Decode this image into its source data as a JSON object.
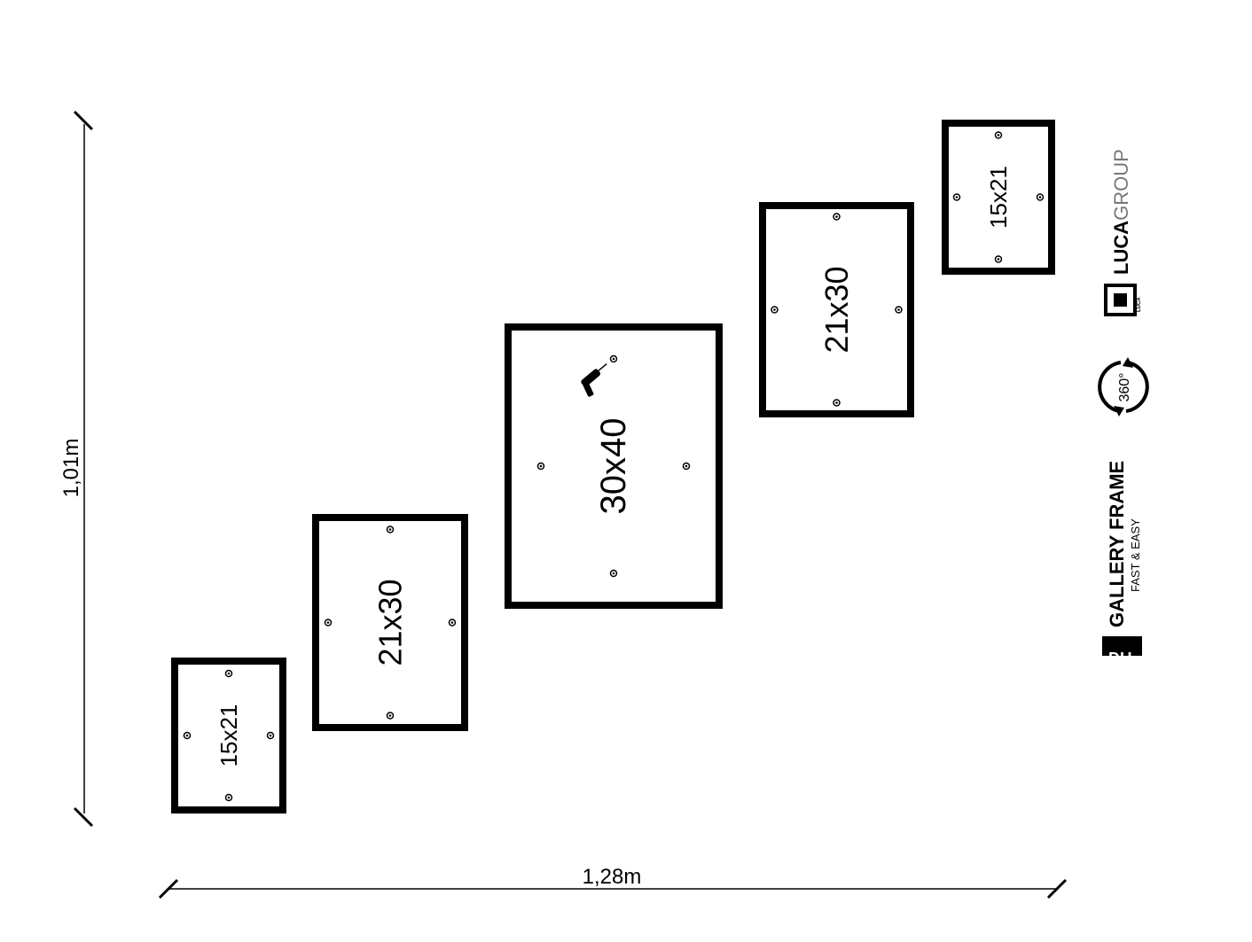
{
  "dimensions": {
    "height": "1,01m",
    "width": "1,28m"
  },
  "frames": [
    {
      "label": "15x21"
    },
    {
      "label": "21x30"
    },
    {
      "label": "30x40",
      "icon": "drill-icon"
    },
    {
      "label": "21x30"
    },
    {
      "label": "15x21"
    }
  ],
  "branding": {
    "luca_bold": "LUCA",
    "luca_light": "GROUP",
    "luca_mark": "LUCA",
    "rotate_badge": "360°",
    "diy": "DIY",
    "product": "GALLERY FRAME",
    "tagline": "FAST & EASY"
  }
}
